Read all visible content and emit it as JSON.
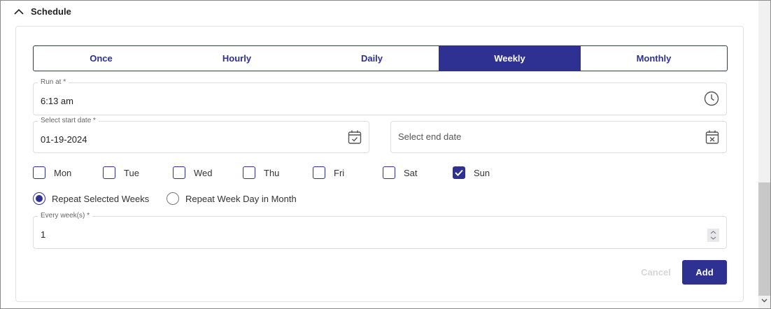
{
  "section": {
    "title": "Schedule",
    "icon": "chevron-up-icon"
  },
  "tabs": [
    {
      "label": "Once"
    },
    {
      "label": "Hourly"
    },
    {
      "label": "Daily"
    },
    {
      "label": "Weekly",
      "active": true
    },
    {
      "label": "Monthly"
    }
  ],
  "run_at": {
    "label": "Run at *",
    "value": "6:13 am",
    "icon": "clock-icon"
  },
  "start_date": {
    "label": "Select start date *",
    "value": "01-19-2024",
    "icon": "calendar-check-icon"
  },
  "end_date": {
    "placeholder": "Select end date",
    "icon": "calendar-x-icon"
  },
  "days": [
    {
      "label": "Mon",
      "checked": false
    },
    {
      "label": "Tue",
      "checked": false
    },
    {
      "label": "Wed",
      "checked": false
    },
    {
      "label": "Thu",
      "checked": false
    },
    {
      "label": "Fri",
      "checked": false
    },
    {
      "label": "Sat",
      "checked": false
    },
    {
      "label": "Sun",
      "checked": true
    }
  ],
  "repeat": [
    {
      "label": "Repeat Selected Weeks",
      "selected": true
    },
    {
      "label": "Repeat Week Day in Month",
      "selected": false
    }
  ],
  "every_weeks": {
    "label": "Every week(s) *",
    "value": "1"
  },
  "buttons": {
    "cancel": "Cancel",
    "add": "Add"
  },
  "colors": {
    "accent": "#2e3192"
  }
}
